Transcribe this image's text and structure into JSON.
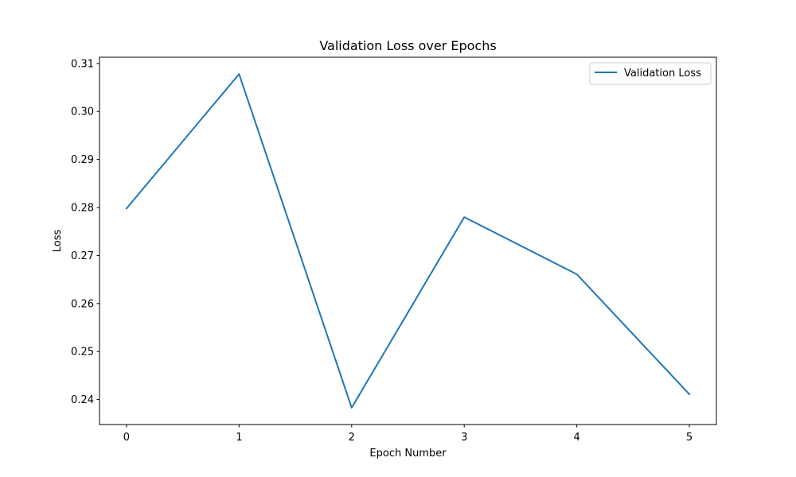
{
  "chart_data": {
    "type": "line",
    "title": "Validation Loss over Epochs",
    "xlabel": "Epoch Number",
    "ylabel": "Loss",
    "x": [
      0,
      1,
      2,
      3,
      4,
      5
    ],
    "series": [
      {
        "name": "Validation Loss",
        "color": "#1f77b4",
        "values": [
          0.2798,
          0.3078,
          0.2383,
          0.278,
          0.2661,
          0.2411
        ]
      }
    ],
    "xlim": [
      -0.24,
      5.24
    ],
    "ylim": [
      0.2348,
      0.3113
    ],
    "xticks": [
      0,
      1,
      2,
      3,
      4,
      5
    ],
    "xtick_labels": [
      "0",
      "1",
      "2",
      "3",
      "4",
      "5"
    ],
    "yticks": [
      0.24,
      0.25,
      0.26,
      0.27,
      0.28,
      0.29,
      0.3,
      0.31
    ],
    "ytick_labels": [
      "0.24",
      "0.25",
      "0.26",
      "0.27",
      "0.28",
      "0.29",
      "0.30",
      "0.31"
    ],
    "grid": false,
    "legend_position": "top-right"
  }
}
